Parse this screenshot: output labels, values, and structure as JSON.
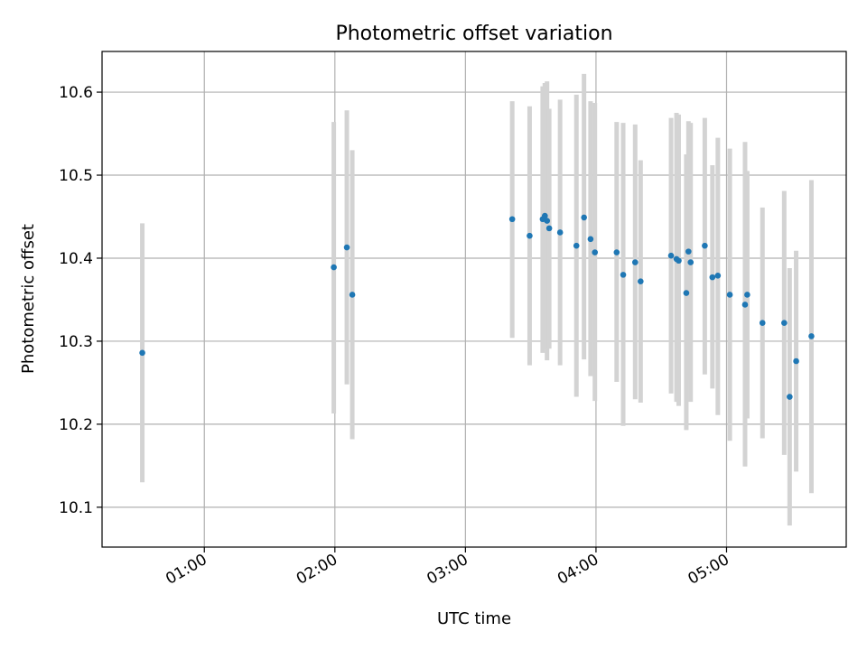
{
  "chart_data": {
    "type": "scatter",
    "title": "Photometric offset variation",
    "xlabel": "UTC time",
    "ylabel": "Photometric offset",
    "x_unit": "UTC time (HH:MM)",
    "xlim": [
      "00:13",
      "05:55"
    ],
    "ylim": [
      10.052,
      10.649
    ],
    "x_ticks": [
      "01:00",
      "02:00",
      "03:00",
      "04:00",
      "05:00"
    ],
    "y_ticks": [
      10.1,
      10.2,
      10.3,
      10.4,
      10.5,
      10.6
    ],
    "y_tick_labels": [
      "10.1",
      "10.2",
      "10.3",
      "10.4",
      "10.5",
      "10.6"
    ],
    "grid": true,
    "colors": {
      "points": "#1f77b4",
      "error_bars": "#d3d3d3",
      "grid": "#b0b0b0"
    },
    "points": [
      {
        "x": "00:31:30",
        "y": 10.286,
        "y_low": 10.13,
        "y_high": 10.442
      },
      {
        "x": "01:59:30",
        "y": 10.389,
        "y_low": 10.213,
        "y_high": 10.564
      },
      {
        "x": "02:05:30",
        "y": 10.413,
        "y_low": 10.248,
        "y_high": 10.578
      },
      {
        "x": "02:08:00",
        "y": 10.356,
        "y_low": 10.182,
        "y_high": 10.53
      },
      {
        "x": "03:21:30",
        "y": 10.447,
        "y_low": 10.304,
        "y_high": 10.589
      },
      {
        "x": "03:29:30",
        "y": 10.427,
        "y_low": 10.271,
        "y_high": 10.583
      },
      {
        "x": "03:35:30",
        "y": 10.447,
        "y_low": 10.286,
        "y_high": 10.607
      },
      {
        "x": "03:36:30",
        "y": 10.451,
        "y_low": 10.291,
        "y_high": 10.611
      },
      {
        "x": "03:37:30",
        "y": 10.445,
        "y_low": 10.277,
        "y_high": 10.613
      },
      {
        "x": "03:38:30",
        "y": 10.436,
        "y_low": 10.291,
        "y_high": 10.58
      },
      {
        "x": "03:43:30",
        "y": 10.431,
        "y_low": 10.271,
        "y_high": 10.591
      },
      {
        "x": "03:51:00",
        "y": 10.415,
        "y_low": 10.233,
        "y_high": 10.597
      },
      {
        "x": "03:54:30",
        "y": 10.449,
        "y_low": 10.278,
        "y_high": 10.622
      },
      {
        "x": "03:57:30",
        "y": 10.423,
        "y_low": 10.258,
        "y_high": 10.589
      },
      {
        "x": "03:59:30",
        "y": 10.407,
        "y_low": 10.228,
        "y_high": 10.587
      },
      {
        "x": "04:09:30",
        "y": 10.407,
        "y_low": 10.251,
        "y_high": 10.564
      },
      {
        "x": "04:12:30",
        "y": 10.38,
        "y_low": 10.198,
        "y_high": 10.563
      },
      {
        "x": "04:18:00",
        "y": 10.395,
        "y_low": 10.23,
        "y_high": 10.561
      },
      {
        "x": "04:20:30",
        "y": 10.372,
        "y_low": 10.226,
        "y_high": 10.518
      },
      {
        "x": "04:34:30",
        "y": 10.403,
        "y_low": 10.237,
        "y_high": 10.569
      },
      {
        "x": "04:37:00",
        "y": 10.399,
        "y_low": 10.227,
        "y_high": 10.575
      },
      {
        "x": "04:38:00",
        "y": 10.397,
        "y_low": 10.222,
        "y_high": 10.573
      },
      {
        "x": "04:41:30",
        "y": 10.358,
        "y_low": 10.193,
        "y_high": 10.525
      },
      {
        "x": "04:42:30",
        "y": 10.408,
        "y_low": 10.253,
        "y_high": 10.565
      },
      {
        "x": "04:43:30",
        "y": 10.395,
        "y_low": 10.227,
        "y_high": 10.563
      },
      {
        "x": "04:50:00",
        "y": 10.415,
        "y_low": 10.26,
        "y_high": 10.569
      },
      {
        "x": "04:53:30",
        "y": 10.377,
        "y_low": 10.243,
        "y_high": 10.512
      },
      {
        "x": "04:56:00",
        "y": 10.379,
        "y_low": 10.211,
        "y_high": 10.545
      },
      {
        "x": "05:01:30",
        "y": 10.356,
        "y_low": 10.18,
        "y_high": 10.532
      },
      {
        "x": "05:08:30",
        "y": 10.344,
        "y_low": 10.149,
        "y_high": 10.54
      },
      {
        "x": "05:09:30",
        "y": 10.356,
        "y_low": 10.207,
        "y_high": 10.505
      },
      {
        "x": "05:16:30",
        "y": 10.322,
        "y_low": 10.183,
        "y_high": 10.461
      },
      {
        "x": "05:26:30",
        "y": 10.322,
        "y_low": 10.163,
        "y_high": 10.481
      },
      {
        "x": "05:29:00",
        "y": 10.233,
        "y_low": 10.078,
        "y_high": 10.388
      },
      {
        "x": "05:32:00",
        "y": 10.276,
        "y_low": 10.143,
        "y_high": 10.409
      },
      {
        "x": "05:39:00",
        "y": 10.306,
        "y_low": 10.117,
        "y_high": 10.494
      }
    ]
  }
}
